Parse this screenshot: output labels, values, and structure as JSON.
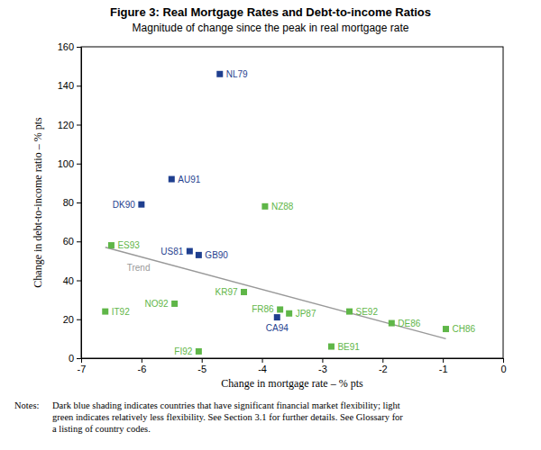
{
  "chart_data": {
    "type": "scatter",
    "title": "Figure 3: Real Mortgage Rates and Debt-to-income Ratios",
    "subtitle": "Magnitude of change since the peak in real mortgage rate",
    "x_label": "Change in mortgage rate – % pts",
    "y_label": "Change in debt-to-income ratio – % pts",
    "xlim": [
      -7,
      0
    ],
    "ylim": [
      0,
      160
    ],
    "xticks": [
      -7,
      -6,
      -5,
      -4,
      -3,
      -2,
      -1,
      0
    ],
    "yticks": [
      0,
      20,
      40,
      60,
      80,
      100,
      120,
      140,
      160
    ],
    "grid": false,
    "notes": {
      "label": "Notes:",
      "lines": [
        "Dark blue shading indicates countries that have significant financial market flexibility; light",
        "green indicates relatively less flexibility. See Section 3.1 for further details. See Glossary for",
        "a listing of country codes."
      ]
    },
    "series": [
      {
        "color": "#1f3f8f",
        "marker": "square",
        "labels": [
          "NL79",
          "AU91",
          "DK90",
          "US81",
          "GB90",
          "CA94"
        ],
        "x": [
          -4.7,
          -5.5,
          -6.0,
          -5.2,
          -5.05,
          -3.75
        ],
        "values": [
          146,
          92,
          79,
          55,
          53,
          21
        ]
      },
      {
        "color": "#5fb648",
        "marker": "square",
        "labels": [
          "NZ88",
          "ES93",
          "KR97",
          "NO92",
          "IT92",
          "SE92",
          "FR86",
          "JP87",
          "DE86",
          "CH86",
          "BE91",
          "FI92"
        ],
        "x": [
          -3.95,
          -6.5,
          -4.3,
          -5.45,
          -6.6,
          -2.55,
          -3.7,
          -3.55,
          -1.85,
          -0.95,
          -2.85,
          -5.05
        ],
        "values": [
          78,
          58,
          34,
          28,
          24,
          24,
          25,
          23,
          18,
          15,
          6,
          3.5
        ]
      },
      {
        "name": "Trend",
        "type": "line",
        "color": "#999999",
        "line_style": "solid",
        "x": [
          -6.6,
          -0.95
        ],
        "values": [
          57,
          10
        ]
      }
    ]
  }
}
